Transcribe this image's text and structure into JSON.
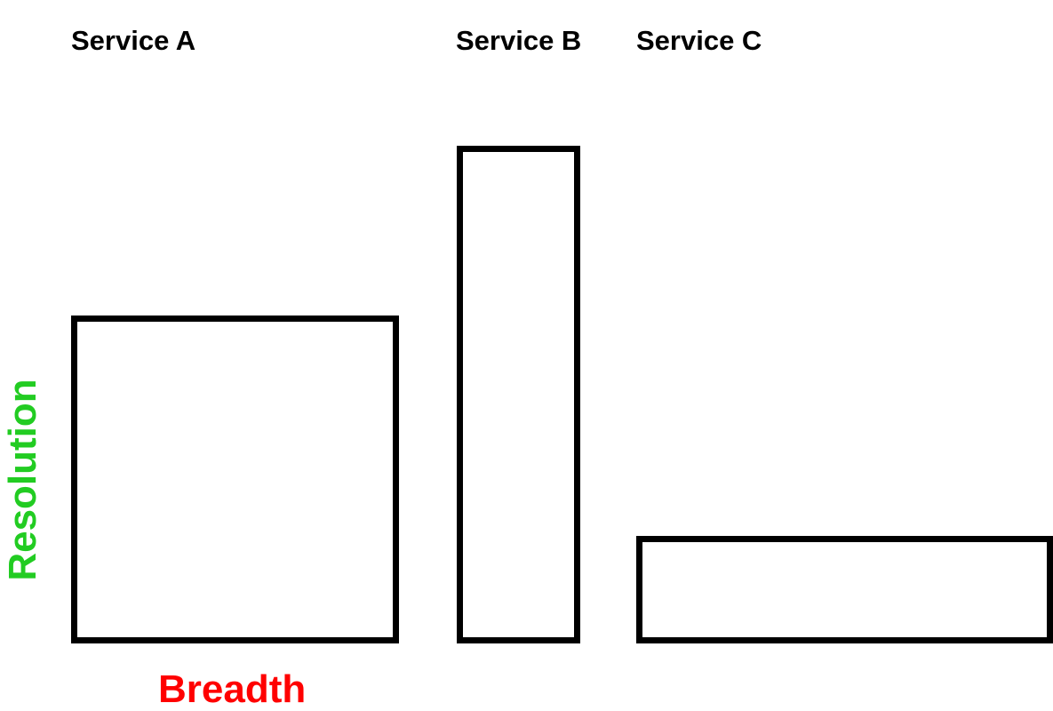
{
  "services": [
    {
      "name": "Service A"
    },
    {
      "name": "Service B"
    },
    {
      "name": "Service C"
    }
  ],
  "axes": {
    "horizontal": {
      "label": "Breadth",
      "color": "#ff0000"
    },
    "vertical": {
      "label": "Resolution",
      "color": "#22cc22"
    }
  },
  "colors": {
    "box_outline": "#000000",
    "background": "#ffffff",
    "text": "#000000"
  }
}
